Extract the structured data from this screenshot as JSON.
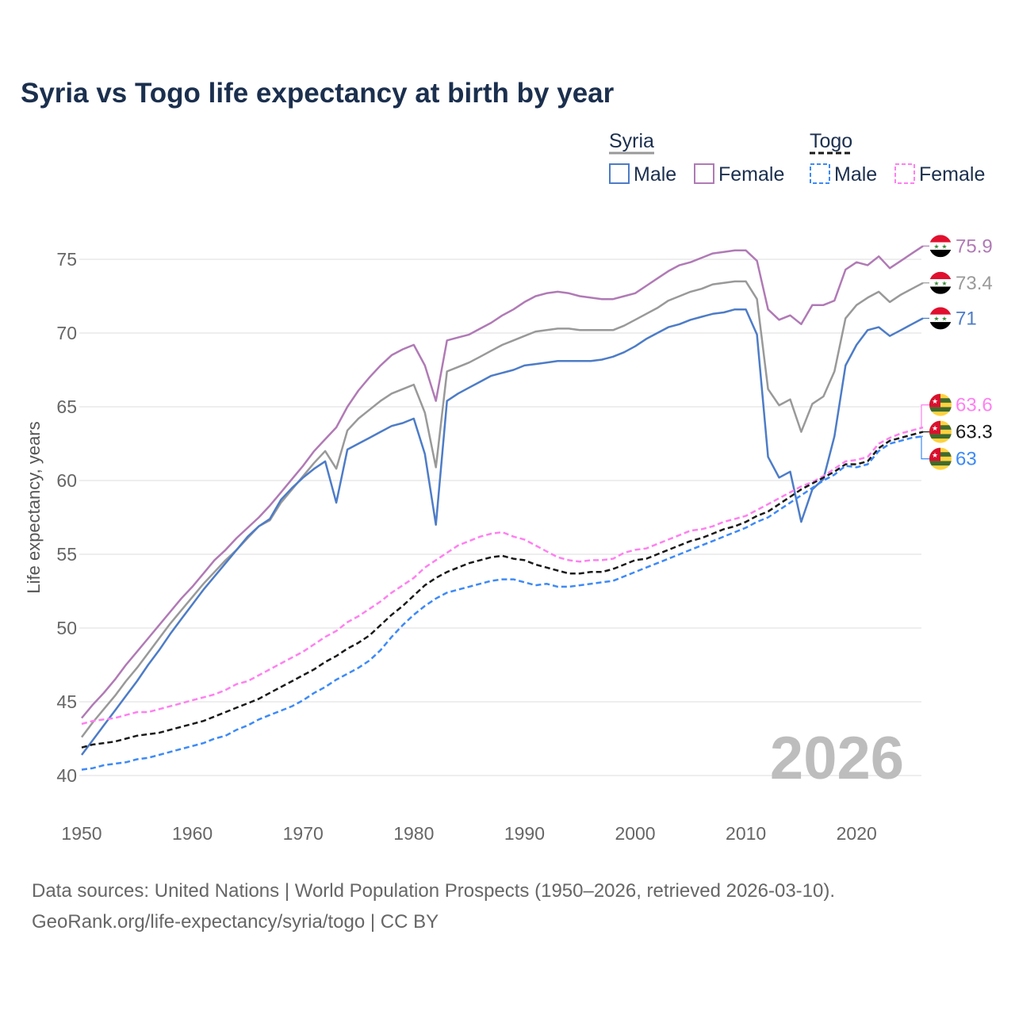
{
  "chart_data": {
    "type": "line",
    "title": "Syria vs Togo life expectancy at birth by year",
    "ylabel": "Life expectancy, years",
    "xlabel": "",
    "x_start": 1950,
    "x_end": 2026,
    "xlim": [
      1950,
      2026
    ],
    "ylim": [
      38.5,
      77
    ],
    "x_ticks": [
      "1950",
      "1960",
      "1970",
      "1980",
      "1990",
      "2000",
      "2010",
      "2020"
    ],
    "y_ticks": [
      "40",
      "45",
      "50",
      "55",
      "60",
      "65",
      "70",
      "75"
    ],
    "grid": true,
    "legend_position": "top-right",
    "watermark_year": "2026",
    "legend": {
      "groups": [
        {
          "country": "Syria",
          "items": [
            "Male",
            "Female"
          ]
        },
        {
          "country": "Togo",
          "items": [
            "Male",
            "Female"
          ]
        }
      ]
    },
    "series": [
      {
        "name": "Syria Female",
        "country": "Syria",
        "sex": "Female",
        "color": "#b07ab5",
        "dashed": false,
        "end_label": "75.9",
        "values": [
          43.9,
          44.8,
          45.6,
          46.5,
          47.5,
          48.4,
          49.3,
          50.2,
          51.1,
          52.0,
          52.8,
          53.7,
          54.6,
          55.3,
          56.1,
          56.8,
          57.5,
          58.3,
          59.2,
          60.1,
          61.0,
          62.0,
          62.8,
          63.6,
          65.0,
          66.1,
          67.0,
          67.8,
          68.5,
          68.9,
          69.2,
          67.8,
          65.4,
          69.5,
          69.7,
          69.9,
          70.3,
          70.7,
          71.2,
          71.6,
          72.1,
          72.5,
          72.7,
          72.8,
          72.7,
          72.5,
          72.4,
          72.3,
          72.3,
          72.5,
          72.7,
          73.2,
          73.7,
          74.2,
          74.6,
          74.8,
          75.1,
          75.4,
          75.5,
          75.6,
          75.6,
          74.9,
          71.6,
          70.9,
          71.2,
          70.6,
          71.9,
          71.9,
          72.2,
          74.3,
          74.8,
          74.6,
          75.2,
          74.4,
          74.9,
          75.4,
          75.9
        ]
      },
      {
        "name": "Syria Total",
        "country": "Syria",
        "sex": "Total",
        "color": "#999999",
        "dashed": false,
        "end_label": "73.4",
        "values": [
          42.6,
          43.6,
          44.5,
          45.4,
          46.4,
          47.3,
          48.3,
          49.3,
          50.3,
          51.2,
          52.1,
          53.0,
          53.8,
          54.6,
          55.3,
          56.1,
          56.9,
          57.3,
          58.5,
          59.4,
          60.3,
          61.2,
          62.0,
          60.8,
          63.4,
          64.2,
          64.8,
          65.4,
          65.9,
          66.2,
          66.5,
          64.6,
          60.9,
          67.4,
          67.7,
          68.0,
          68.4,
          68.8,
          69.2,
          69.5,
          69.8,
          70.1,
          70.2,
          70.3,
          70.3,
          70.2,
          70.2,
          70.2,
          70.2,
          70.5,
          70.9,
          71.3,
          71.7,
          72.2,
          72.5,
          72.8,
          73.0,
          73.3,
          73.4,
          73.5,
          73.5,
          72.3,
          66.2,
          65.1,
          65.5,
          63.3,
          65.2,
          65.7,
          67.4,
          71.0,
          71.9,
          72.4,
          72.8,
          72.1,
          72.6,
          73.0,
          73.4
        ]
      },
      {
        "name": "Syria Male",
        "country": "Syria",
        "sex": "Male",
        "color": "#4d7cc7",
        "dashed": false,
        "end_label": "71",
        "values": [
          41.4,
          42.4,
          43.4,
          44.4,
          45.4,
          46.4,
          47.5,
          48.5,
          49.6,
          50.6,
          51.6,
          52.6,
          53.5,
          54.4,
          55.3,
          56.2,
          56.9,
          57.4,
          58.7,
          59.5,
          60.2,
          60.8,
          61.3,
          58.5,
          62.1,
          62.5,
          62.9,
          63.3,
          63.7,
          63.9,
          64.2,
          61.8,
          57.0,
          65.4,
          65.9,
          66.3,
          66.7,
          67.1,
          67.3,
          67.5,
          67.8,
          67.9,
          68.0,
          68.1,
          68.1,
          68.1,
          68.1,
          68.2,
          68.4,
          68.7,
          69.1,
          69.6,
          70.0,
          70.4,
          70.6,
          70.9,
          71.1,
          71.3,
          71.4,
          71.6,
          71.6,
          69.9,
          61.6,
          60.2,
          60.6,
          57.2,
          59.4,
          60.1,
          63.0,
          67.8,
          69.2,
          70.2,
          70.4,
          69.8,
          70.2,
          70.6,
          71.0
        ]
      },
      {
        "name": "Togo Female",
        "country": "Togo",
        "sex": "Female",
        "color": "#ff80f0",
        "dashed": true,
        "end_label": "63.6",
        "values": [
          43.5,
          43.7,
          43.8,
          43.9,
          44.1,
          44.3,
          44.3,
          44.5,
          44.7,
          44.9,
          45.1,
          45.3,
          45.5,
          45.8,
          46.2,
          46.4,
          46.8,
          47.2,
          47.6,
          48.0,
          48.4,
          48.9,
          49.4,
          49.8,
          50.4,
          50.8,
          51.3,
          51.8,
          52.4,
          52.9,
          53.4,
          54.1,
          54.6,
          55.1,
          55.6,
          55.9,
          56.2,
          56.4,
          56.5,
          56.2,
          56.0,
          55.6,
          55.2,
          54.8,
          54.6,
          54.5,
          54.6,
          54.6,
          54.7,
          55.1,
          55.3,
          55.4,
          55.7,
          56.0,
          56.3,
          56.6,
          56.7,
          56.9,
          57.2,
          57.4,
          57.6,
          58.0,
          58.4,
          58.8,
          59.2,
          59.6,
          59.9,
          60.3,
          60.8,
          61.3,
          61.4,
          61.6,
          62.5,
          62.9,
          63.2,
          63.4,
          63.6
        ]
      },
      {
        "name": "Togo Total",
        "country": "Togo",
        "sex": "Total",
        "color": "#1a1a1a",
        "dashed": true,
        "end_label": "63.3",
        "values": [
          41.9,
          42.1,
          42.2,
          42.3,
          42.5,
          42.7,
          42.8,
          42.9,
          43.1,
          43.3,
          43.5,
          43.7,
          44.0,
          44.3,
          44.6,
          44.9,
          45.2,
          45.6,
          46.0,
          46.4,
          46.8,
          47.2,
          47.7,
          48.1,
          48.6,
          49.0,
          49.5,
          50.2,
          50.9,
          51.5,
          52.2,
          52.9,
          53.4,
          53.8,
          54.1,
          54.4,
          54.6,
          54.8,
          54.9,
          54.7,
          54.6,
          54.3,
          54.1,
          53.9,
          53.7,
          53.7,
          53.8,
          53.8,
          54.0,
          54.3,
          54.6,
          54.7,
          55.0,
          55.3,
          55.6,
          55.9,
          56.1,
          56.4,
          56.7,
          56.9,
          57.2,
          57.6,
          57.9,
          58.4,
          58.9,
          59.4,
          59.8,
          60.2,
          60.6,
          61.1,
          61.1,
          61.3,
          62.2,
          62.7,
          62.9,
          63.1,
          63.3
        ]
      },
      {
        "name": "Togo Male",
        "country": "Togo",
        "sex": "Male",
        "color": "#3d8af7",
        "dashed": true,
        "end_label": "63",
        "values": [
          40.4,
          40.5,
          40.7,
          40.8,
          40.9,
          41.1,
          41.2,
          41.4,
          41.6,
          41.8,
          42.0,
          42.2,
          42.5,
          42.7,
          43.1,
          43.4,
          43.8,
          44.1,
          44.4,
          44.7,
          45.1,
          45.6,
          46.0,
          46.5,
          46.9,
          47.3,
          47.8,
          48.5,
          49.4,
          50.2,
          50.9,
          51.5,
          52.0,
          52.4,
          52.6,
          52.8,
          53.0,
          53.2,
          53.3,
          53.3,
          53.1,
          52.9,
          53.0,
          52.8,
          52.8,
          52.9,
          53.0,
          53.1,
          53.2,
          53.5,
          53.8,
          54.1,
          54.4,
          54.7,
          55.0,
          55.3,
          55.6,
          55.9,
          56.2,
          56.5,
          56.8,
          57.2,
          57.5,
          58.0,
          58.5,
          59.0,
          59.5,
          60.0,
          60.4,
          61.0,
          60.9,
          61.1,
          62.0,
          62.5,
          62.7,
          62.9,
          63.0
        ]
      }
    ]
  },
  "footer": {
    "line1": "Data sources: United Nations | World Population Prospects (1950–2026, retrieved 2026-03-10).",
    "line2": "GeoRank.org/life-expectancy/syria/togo | CC BY"
  }
}
